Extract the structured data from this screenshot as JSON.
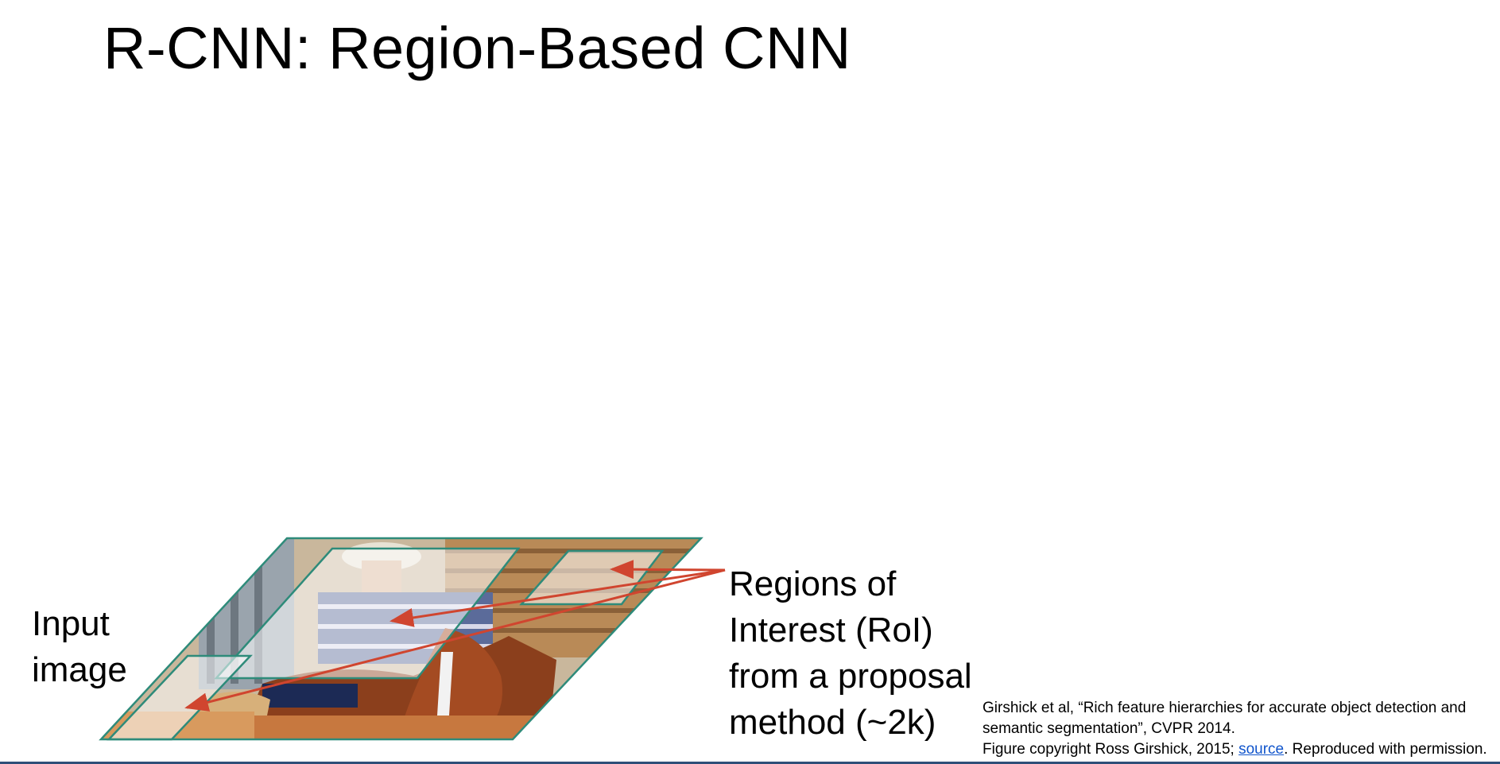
{
  "slide": {
    "title": "R-CNN: Region-Based CNN"
  },
  "labels": {
    "input_line1": "Input",
    "input_line2": "image",
    "roi_line1": "Regions of",
    "roi_line2": "Interest (RoI)",
    "roi_line3": "from a proposal",
    "roi_line4": "method (~2k)"
  },
  "citation": {
    "line1": "Girshick et al, “Rich feature hierarchies for accurate object detection and",
    "line2": "semantic segmentation”, CVPR 2014.",
    "line3_pre": "Figure copyright Ross Girshick, 2015; ",
    "line3_link": "source",
    "line3_post": ". Reproduced with permission."
  },
  "colors": {
    "outline": "#2e8b7a",
    "arrow": "#d0452f",
    "accent_bar": "#2f4f79"
  }
}
